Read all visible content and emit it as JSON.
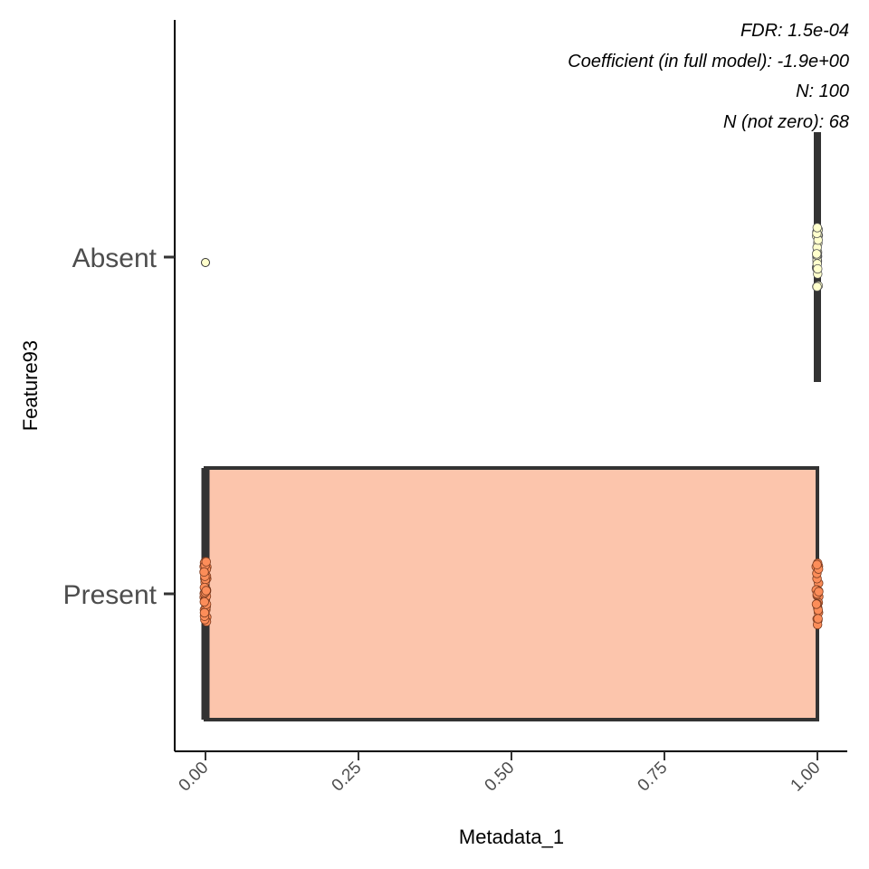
{
  "chart_data": {
    "type": "boxplot",
    "orientation": "horizontal",
    "xlabel": "Metadata_1",
    "ylabel": "Feature93",
    "xlim": [
      -0.05,
      1.05
    ],
    "x_ticks": [
      0,
      0.25,
      0.5,
      0.75,
      1
    ],
    "x_tick_labels": [
      "0.00",
      "0.25",
      "0.50",
      "0.75",
      "1.00"
    ],
    "categories": [
      "Absent",
      "Present"
    ],
    "annotations": [
      "FDR: 1.5e-04",
      "Coefficient (in full model): -1.9e+00",
      "N: 100",
      "N (not zero): 68"
    ],
    "boxes": [
      {
        "category": "Absent",
        "min": 1,
        "q1": 1,
        "median": 1,
        "q3": 1,
        "max": 1,
        "fill": "#ffffcc",
        "outliers": [
          0
        ],
        "points": [
          1,
          1,
          1,
          1,
          1,
          1,
          1,
          1,
          1,
          1,
          1,
          1,
          1,
          1,
          1,
          1,
          1,
          1,
          1,
          1,
          1,
          1,
          1,
          1,
          1,
          1,
          1,
          1,
          1,
          1,
          1
        ]
      },
      {
        "category": "Present",
        "min": 0,
        "q1": 0,
        "median": 0,
        "q3": 1,
        "max": 1,
        "fill": "#fcc5ac",
        "point_color": "#fc8d59",
        "points_at_0": 40,
        "points_at_1": 28
      }
    ]
  }
}
